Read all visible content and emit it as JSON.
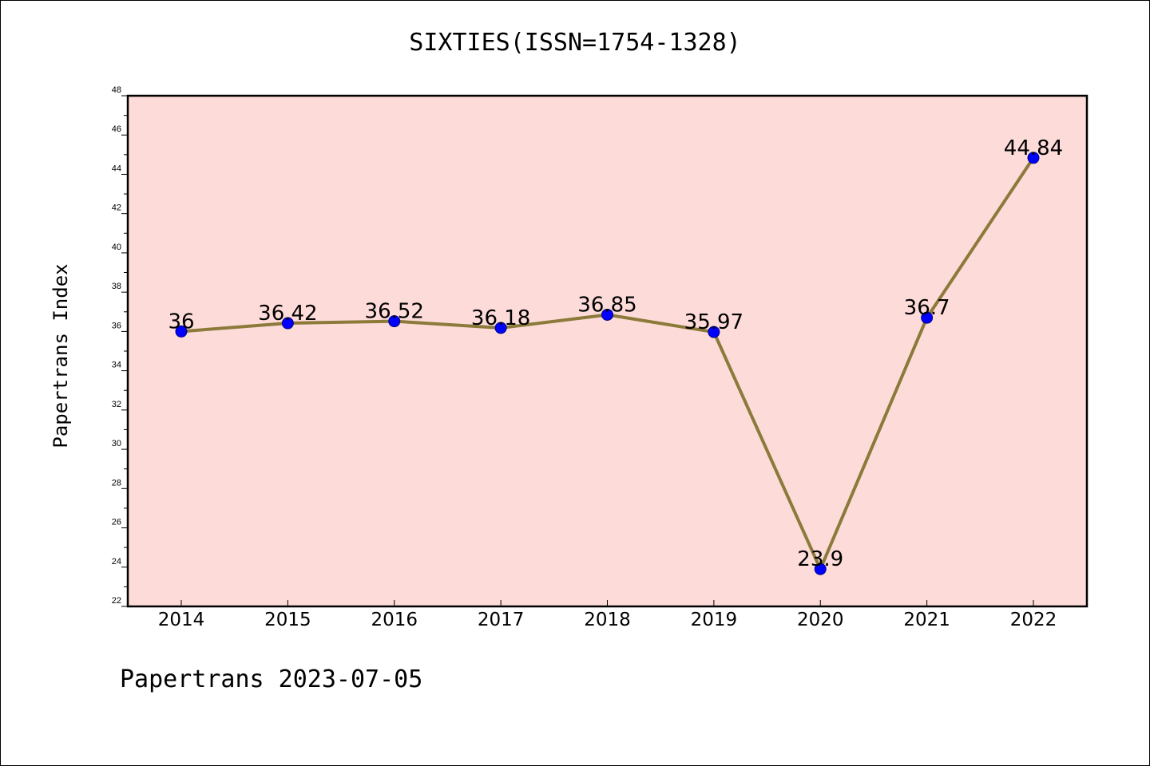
{
  "header": {
    "title": "SIXTIES(ISSN=1754-1328)"
  },
  "footer": {
    "text": "Papertrans 2023-07-05"
  },
  "chart_data": {
    "type": "line",
    "title": "SIXTIES(ISSN=1754-1328)",
    "xlabel": "",
    "ylabel": "Papertrans Index",
    "categories": [
      "2014",
      "2015",
      "2016",
      "2017",
      "2018",
      "2019",
      "2020",
      "2021",
      "2022"
    ],
    "series": [
      {
        "values": [
          36,
          36.42,
          36.52,
          36.18,
          36.85,
          35.97,
          23.9,
          36.7,
          44.84
        ],
        "labels": [
          "36",
          "36.42",
          "36.52",
          "36.18",
          "36.85",
          "35.97",
          "23.9",
          "36.7",
          "44.84"
        ]
      }
    ],
    "ylim": [
      22,
      48
    ],
    "yticks": [
      22,
      24,
      26,
      28,
      30,
      32,
      34,
      36,
      38,
      40,
      42,
      44,
      46,
      48
    ],
    "grid": false,
    "colors": {
      "plot_background": "#fddbd8",
      "line": "#8b7a3a",
      "marker_fill": "#0000ff",
      "marker_edge": "#000080",
      "axis": "#000000"
    }
  }
}
